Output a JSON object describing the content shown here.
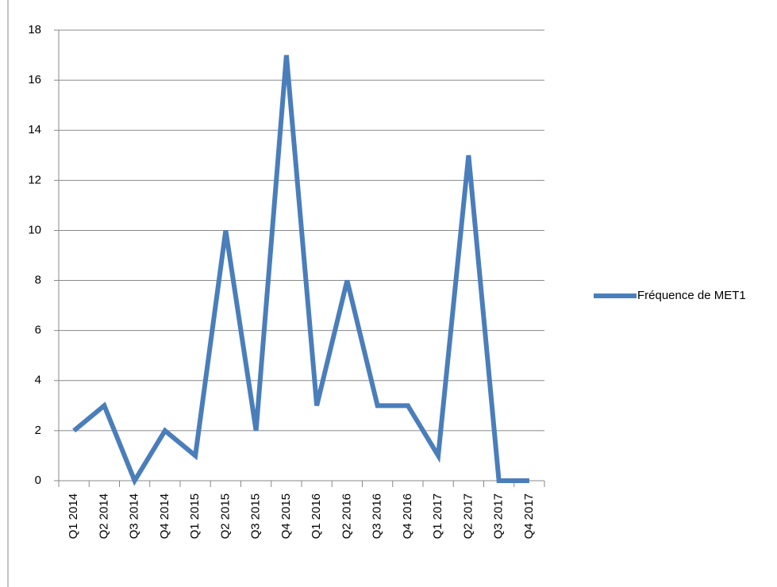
{
  "chart_data": {
    "type": "line",
    "categories": [
      "Q1 2014",
      "Q2 2014",
      "Q3 2014",
      "Q4 2014",
      "Q1 2015",
      "Q2 2015",
      "Q3 2015",
      "Q4 2015",
      "Q1 2016",
      "Q2 2016",
      "Q3 2016",
      "Q4 2016",
      "Q1 2017",
      "Q2 2017",
      "Q3 2017",
      "Q4 2017"
    ],
    "series": [
      {
        "name": "Fréquence de MET1",
        "color": "#4a7ebb",
        "values": [
          2,
          3,
          0,
          2,
          1,
          10,
          2,
          17,
          3,
          8,
          3,
          3,
          1,
          13,
          0,
          0
        ]
      }
    ],
    "ylim": [
      0,
      18
    ],
    "yticks": [
      0,
      2,
      4,
      6,
      8,
      10,
      12,
      14,
      16,
      18
    ],
    "grid": true,
    "legend": "right"
  }
}
